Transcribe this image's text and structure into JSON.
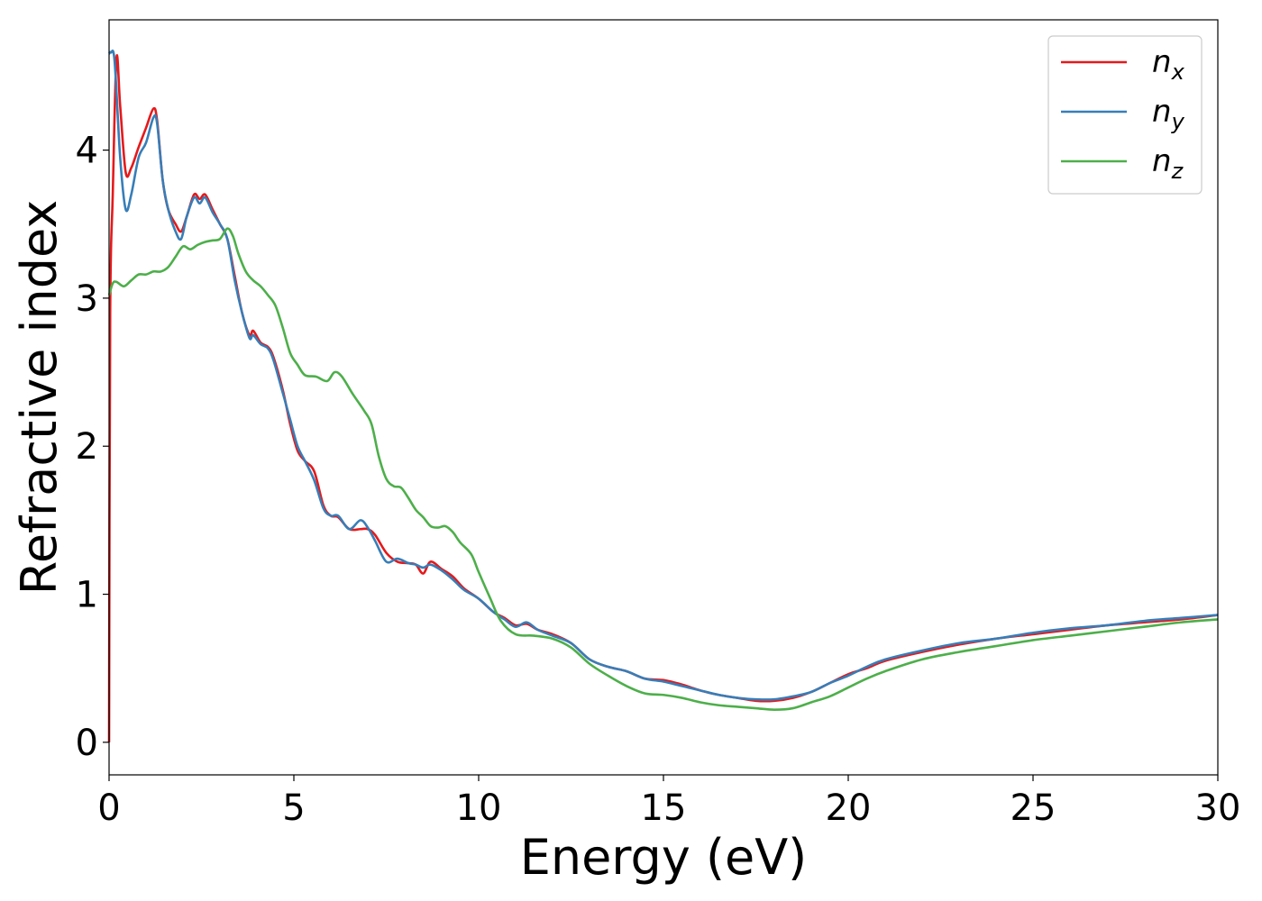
{
  "chart_data": {
    "type": "line",
    "xlabel": "Energy (eV)",
    "ylabel": "Refractive index",
    "xlim": [
      0,
      30
    ],
    "ylim": [
      -0.22,
      4.88
    ],
    "x_ticks": [
      0,
      5,
      10,
      15,
      20,
      25,
      30
    ],
    "y_ticks": [
      0,
      1,
      2,
      3,
      4
    ],
    "grid": false,
    "legend_position": "top-right",
    "series": [
      {
        "name": "n",
        "subscript": "x",
        "color": "#e41a1c",
        "points": [
          [
            0,
            0
          ],
          [
            0.03,
            2.9
          ],
          [
            0.1,
            3.7
          ],
          [
            0.2,
            4.62
          ],
          [
            0.3,
            4.3
          ],
          [
            0.45,
            3.85
          ],
          [
            0.6,
            3.88
          ],
          [
            0.8,
            4.02
          ],
          [
            1.0,
            4.15
          ],
          [
            1.2,
            4.28
          ],
          [
            1.3,
            4.2
          ],
          [
            1.45,
            3.8
          ],
          [
            1.6,
            3.6
          ],
          [
            1.8,
            3.5
          ],
          [
            1.95,
            3.45
          ],
          [
            2.1,
            3.55
          ],
          [
            2.3,
            3.7
          ],
          [
            2.45,
            3.67
          ],
          [
            2.6,
            3.7
          ],
          [
            2.8,
            3.6
          ],
          [
            3.0,
            3.5
          ],
          [
            3.2,
            3.4
          ],
          [
            3.4,
            3.15
          ],
          [
            3.6,
            2.9
          ],
          [
            3.8,
            2.75
          ],
          [
            3.9,
            2.78
          ],
          [
            4.1,
            2.7
          ],
          [
            4.3,
            2.67
          ],
          [
            4.45,
            2.6
          ],
          [
            4.7,
            2.38
          ],
          [
            4.9,
            2.15
          ],
          [
            5.1,
            1.97
          ],
          [
            5.3,
            1.9
          ],
          [
            5.55,
            1.83
          ],
          [
            5.8,
            1.6
          ],
          [
            6.0,
            1.53
          ],
          [
            6.2,
            1.52
          ],
          [
            6.5,
            1.44
          ],
          [
            6.8,
            1.44
          ],
          [
            7.0,
            1.44
          ],
          [
            7.2,
            1.4
          ],
          [
            7.5,
            1.28
          ],
          [
            7.8,
            1.22
          ],
          [
            8.1,
            1.21
          ],
          [
            8.3,
            1.2
          ],
          [
            8.5,
            1.14
          ],
          [
            8.7,
            1.22
          ],
          [
            9.0,
            1.17
          ],
          [
            9.3,
            1.12
          ],
          [
            9.6,
            1.04
          ],
          [
            10.0,
            0.97
          ],
          [
            10.4,
            0.88
          ],
          [
            10.7,
            0.84
          ],
          [
            11.0,
            0.79
          ],
          [
            11.3,
            0.8
          ],
          [
            11.6,
            0.76
          ],
          [
            12.0,
            0.73
          ],
          [
            12.5,
            0.67
          ],
          [
            13.0,
            0.56
          ],
          [
            13.5,
            0.51
          ],
          [
            14.0,
            0.48
          ],
          [
            14.5,
            0.43
          ],
          [
            15.0,
            0.42
          ],
          [
            15.5,
            0.39
          ],
          [
            16.0,
            0.35
          ],
          [
            16.5,
            0.32
          ],
          [
            17.0,
            0.3
          ],
          [
            17.5,
            0.28
          ],
          [
            18.0,
            0.28
          ],
          [
            18.5,
            0.3
          ],
          [
            19.0,
            0.34
          ],
          [
            19.5,
            0.4
          ],
          [
            20.0,
            0.46
          ],
          [
            20.5,
            0.5
          ],
          [
            21.0,
            0.55
          ],
          [
            22.0,
            0.61
          ],
          [
            23.0,
            0.66
          ],
          [
            24.0,
            0.7
          ],
          [
            25.0,
            0.73
          ],
          [
            26.0,
            0.76
          ],
          [
            27.0,
            0.79
          ],
          [
            28.0,
            0.81
          ],
          [
            29.0,
            0.83
          ],
          [
            30.0,
            0.86
          ]
        ]
      },
      {
        "name": "n",
        "subscript": "y",
        "color": "#377eb8",
        "points": [
          [
            0,
            4.65
          ],
          [
            0.05,
            4.66
          ],
          [
            0.15,
            4.6
          ],
          [
            0.3,
            3.95
          ],
          [
            0.45,
            3.6
          ],
          [
            0.6,
            3.7
          ],
          [
            0.8,
            3.95
          ],
          [
            1.0,
            4.05
          ],
          [
            1.2,
            4.22
          ],
          [
            1.3,
            4.18
          ],
          [
            1.45,
            3.8
          ],
          [
            1.6,
            3.6
          ],
          [
            1.8,
            3.45
          ],
          [
            1.95,
            3.4
          ],
          [
            2.1,
            3.55
          ],
          [
            2.3,
            3.68
          ],
          [
            2.45,
            3.64
          ],
          [
            2.6,
            3.68
          ],
          [
            2.8,
            3.58
          ],
          [
            3.0,
            3.5
          ],
          [
            3.2,
            3.4
          ],
          [
            3.4,
            3.12
          ],
          [
            3.6,
            2.9
          ],
          [
            3.8,
            2.73
          ],
          [
            3.9,
            2.75
          ],
          [
            4.1,
            2.69
          ],
          [
            4.3,
            2.66
          ],
          [
            4.45,
            2.58
          ],
          [
            4.7,
            2.36
          ],
          [
            4.9,
            2.18
          ],
          [
            5.1,
            2.0
          ],
          [
            5.3,
            1.9
          ],
          [
            5.55,
            1.77
          ],
          [
            5.8,
            1.58
          ],
          [
            6.0,
            1.53
          ],
          [
            6.2,
            1.53
          ],
          [
            6.5,
            1.44
          ],
          [
            6.8,
            1.5
          ],
          [
            7.0,
            1.45
          ],
          [
            7.2,
            1.36
          ],
          [
            7.5,
            1.22
          ],
          [
            7.8,
            1.24
          ],
          [
            8.1,
            1.21
          ],
          [
            8.3,
            1.2
          ],
          [
            8.5,
            1.18
          ],
          [
            8.7,
            1.2
          ],
          [
            9.0,
            1.16
          ],
          [
            9.3,
            1.1
          ],
          [
            9.6,
            1.03
          ],
          [
            10.0,
            0.97
          ],
          [
            10.4,
            0.88
          ],
          [
            10.7,
            0.83
          ],
          [
            11.0,
            0.78
          ],
          [
            11.3,
            0.81
          ],
          [
            11.6,
            0.76
          ],
          [
            12.0,
            0.72
          ],
          [
            12.5,
            0.67
          ],
          [
            13.0,
            0.56
          ],
          [
            13.5,
            0.51
          ],
          [
            14.0,
            0.48
          ],
          [
            14.5,
            0.43
          ],
          [
            15.0,
            0.41
          ],
          [
            15.5,
            0.38
          ],
          [
            16.0,
            0.35
          ],
          [
            16.5,
            0.32
          ],
          [
            17.0,
            0.3
          ],
          [
            17.5,
            0.29
          ],
          [
            18.0,
            0.29
          ],
          [
            18.5,
            0.31
          ],
          [
            19.0,
            0.34
          ],
          [
            19.5,
            0.4
          ],
          [
            20.0,
            0.45
          ],
          [
            20.5,
            0.51
          ],
          [
            21.0,
            0.56
          ],
          [
            22.0,
            0.62
          ],
          [
            23.0,
            0.67
          ],
          [
            24.0,
            0.7
          ],
          [
            25.0,
            0.74
          ],
          [
            26.0,
            0.77
          ],
          [
            27.0,
            0.79
          ],
          [
            28.0,
            0.82
          ],
          [
            29.0,
            0.84
          ],
          [
            30.0,
            0.86
          ]
        ]
      },
      {
        "name": "n",
        "subscript": "z",
        "color": "#4daf4a",
        "points": [
          [
            0,
            3.02
          ],
          [
            0.1,
            3.1
          ],
          [
            0.2,
            3.11
          ],
          [
            0.4,
            3.08
          ],
          [
            0.6,
            3.12
          ],
          [
            0.8,
            3.16
          ],
          [
            1.0,
            3.16
          ],
          [
            1.2,
            3.18
          ],
          [
            1.4,
            3.18
          ],
          [
            1.6,
            3.21
          ],
          [
            1.8,
            3.28
          ],
          [
            2.0,
            3.35
          ],
          [
            2.2,
            3.33
          ],
          [
            2.4,
            3.36
          ],
          [
            2.6,
            3.38
          ],
          [
            2.8,
            3.39
          ],
          [
            3.0,
            3.4
          ],
          [
            3.2,
            3.47
          ],
          [
            3.35,
            3.42
          ],
          [
            3.5,
            3.3
          ],
          [
            3.7,
            3.18
          ],
          [
            3.9,
            3.12
          ],
          [
            4.1,
            3.08
          ],
          [
            4.3,
            3.02
          ],
          [
            4.5,
            2.95
          ],
          [
            4.7,
            2.8
          ],
          [
            4.9,
            2.63
          ],
          [
            5.1,
            2.55
          ],
          [
            5.3,
            2.48
          ],
          [
            5.6,
            2.47
          ],
          [
            5.9,
            2.44
          ],
          [
            6.1,
            2.5
          ],
          [
            6.3,
            2.47
          ],
          [
            6.6,
            2.35
          ],
          [
            6.9,
            2.24
          ],
          [
            7.1,
            2.15
          ],
          [
            7.3,
            1.93
          ],
          [
            7.5,
            1.78
          ],
          [
            7.7,
            1.73
          ],
          [
            7.9,
            1.72
          ],
          [
            8.1,
            1.65
          ],
          [
            8.3,
            1.57
          ],
          [
            8.5,
            1.52
          ],
          [
            8.7,
            1.46
          ],
          [
            8.9,
            1.45
          ],
          [
            9.1,
            1.46
          ],
          [
            9.3,
            1.42
          ],
          [
            9.5,
            1.35
          ],
          [
            9.8,
            1.27
          ],
          [
            10.0,
            1.15
          ],
          [
            10.3,
            0.98
          ],
          [
            10.6,
            0.82
          ],
          [
            11.0,
            0.73
          ],
          [
            11.5,
            0.72
          ],
          [
            12.0,
            0.7
          ],
          [
            12.5,
            0.64
          ],
          [
            13.0,
            0.53
          ],
          [
            13.5,
            0.45
          ],
          [
            14.0,
            0.38
          ],
          [
            14.5,
            0.33
          ],
          [
            15.0,
            0.32
          ],
          [
            15.5,
            0.3
          ],
          [
            16.0,
            0.27
          ],
          [
            16.5,
            0.25
          ],
          [
            17.0,
            0.24
          ],
          [
            17.5,
            0.23
          ],
          [
            18.0,
            0.22
          ],
          [
            18.5,
            0.23
          ],
          [
            19.0,
            0.27
          ],
          [
            19.5,
            0.31
          ],
          [
            20.0,
            0.37
          ],
          [
            20.5,
            0.43
          ],
          [
            21.0,
            0.48
          ],
          [
            22.0,
            0.56
          ],
          [
            23.0,
            0.61
          ],
          [
            24.0,
            0.65
          ],
          [
            25.0,
            0.69
          ],
          [
            26.0,
            0.72
          ],
          [
            27.0,
            0.75
          ],
          [
            28.0,
            0.78
          ],
          [
            29.0,
            0.81
          ],
          [
            30.0,
            0.83
          ]
        ]
      }
    ]
  }
}
